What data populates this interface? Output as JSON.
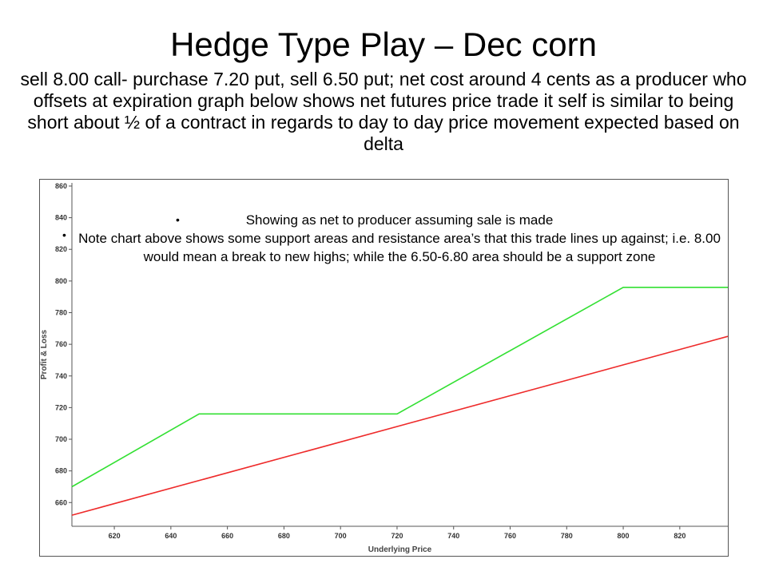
{
  "slide": {
    "title": "Hedge Type Play – Dec corn",
    "subtitle": "sell 8.00 call- purchase 7.20 put, sell 6.50 put; net cost around 4 cents as a producer who offsets at expiration graph below shows net futures price trade it self is similar to being short about ½ of a contract in regards to day to day price movement expected based on delta",
    "bullets": [
      "Showing as net to producer assuming sale is made",
      "Note chart above shows some support areas and resistance area’s that this trade lines up against; i.e. 8.00 would mean a break to new highs; while the 6.50-6.80 area should be a support zone"
    ],
    "bullet_glyph": "•"
  },
  "colors": {
    "hedge_line": "#33e033",
    "futures_line": "#ee2a2a",
    "axis": "#555555",
    "text": "#000000"
  },
  "chart_data": {
    "type": "line",
    "xlabel": "Underlying Price",
    "ylabel": "Profit & Loss",
    "xlim": [
      605,
      837
    ],
    "ylim": [
      645,
      862
    ],
    "xticks": [
      620,
      640,
      660,
      680,
      700,
      720,
      740,
      760,
      780,
      800,
      820
    ],
    "yticks": [
      660,
      680,
      700,
      720,
      740,
      760,
      780,
      800,
      820,
      840,
      860
    ],
    "grid": false,
    "series": [
      {
        "x": [
          605,
          650,
          720,
          800,
          837
        ],
        "y": [
          670,
          716,
          716,
          796,
          796
        ]
      },
      {
        "x": [
          605,
          837
        ],
        "y": [
          652,
          765
        ]
      }
    ]
  }
}
